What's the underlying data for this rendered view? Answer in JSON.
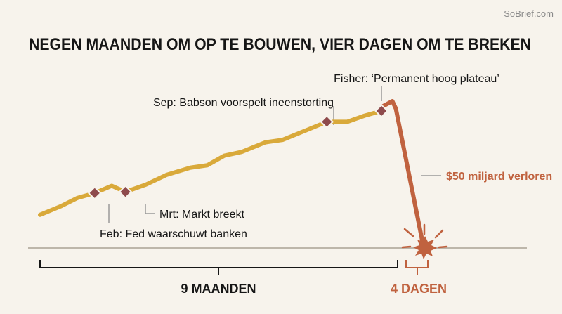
{
  "watermark": "SoBrief.com",
  "title": "NEGEN MAANDEN OM OP TE BOUWEN, VIER DAGEN OM TE BREKEN",
  "colors": {
    "background": "#f7f3ec",
    "rise": "#d9a93a",
    "crash": "#c0623f",
    "marker": "#8e4a4c",
    "baseline": "#bdb6aa",
    "text": "#161616",
    "connector": "#9a9a9a"
  },
  "chart_data": {
    "type": "line",
    "title": "NEGEN MAANDEN OM OP TE BOUWEN, VIER DAGEN OM TE BREKEN",
    "xlabel": "",
    "ylabel": "",
    "grid": false,
    "legend": "none",
    "x_domain": [
      0,
      1
    ],
    "y_domain": [
      0,
      1
    ],
    "series": [
      {
        "segment": "build-up",
        "color": "#d9a93a",
        "points": [
          [
            0.0,
            0.1
          ],
          [
            0.06,
            0.17
          ],
          [
            0.11,
            0.24
          ],
          [
            0.16,
            0.28
          ],
          [
            0.21,
            0.34
          ],
          [
            0.25,
            0.29
          ],
          [
            0.31,
            0.35
          ],
          [
            0.37,
            0.43
          ],
          [
            0.44,
            0.49
          ],
          [
            0.49,
            0.51
          ],
          [
            0.54,
            0.59
          ],
          [
            0.59,
            0.62
          ],
          [
            0.66,
            0.7
          ],
          [
            0.71,
            0.72
          ],
          [
            0.78,
            0.8
          ],
          [
            0.84,
            0.87
          ],
          [
            0.9,
            0.87
          ],
          [
            0.95,
            0.92
          ],
          [
            1.0,
            0.96
          ]
        ]
      },
      {
        "segment": "crash",
        "color": "#c0623f",
        "points": [
          [
            0.0,
            0.96
          ],
          [
            0.25,
            1.0
          ],
          [
            0.33,
            0.95
          ],
          [
            0.95,
            0.03
          ],
          [
            1.0,
            0.0
          ]
        ]
      }
    ],
    "annotations": [
      {
        "label": "Feb: Fed waarschuwt banken",
        "segment": "build-up",
        "at": 0.16
      },
      {
        "label": "Mrt: Markt breekt",
        "segment": "build-up",
        "at": 0.25
      },
      {
        "label": "Sep: Babson voorspelt ineenstorting",
        "segment": "build-up",
        "at": 0.84
      },
      {
        "label": "Fisher: ‘Permanent hoog plateau’",
        "segment": "build-up",
        "at": 1.0
      },
      {
        "label": "$50 miljard verloren",
        "segment": "crash"
      }
    ],
    "periods": [
      {
        "label": "9 MAANDEN"
      },
      {
        "label": "4 DAGEN"
      }
    ]
  }
}
